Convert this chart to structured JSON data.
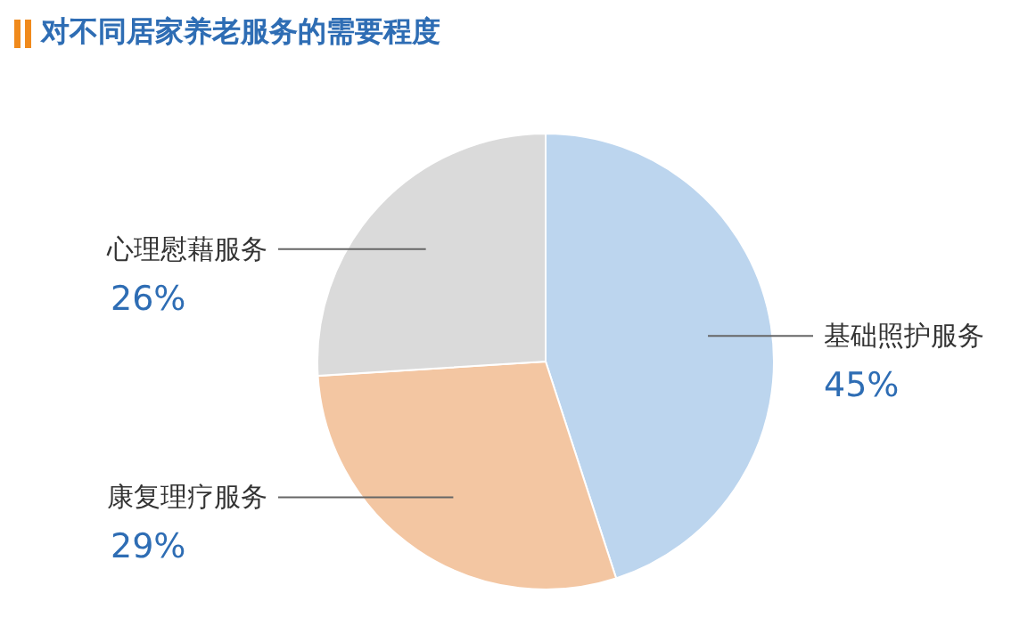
{
  "chart_data": {
    "type": "pie",
    "title": "对不同居家养老服务的需要程度",
    "categories": [
      "基础照护服务",
      "康复理疗服务",
      "心理慰藉服务"
    ],
    "values": [
      45,
      29,
      26
    ],
    "value_labels": [
      "45%",
      "29%",
      "26%"
    ],
    "colors": [
      "#bcd5ee",
      "#f3c6a2",
      "#dadada"
    ],
    "legend": false
  }
}
